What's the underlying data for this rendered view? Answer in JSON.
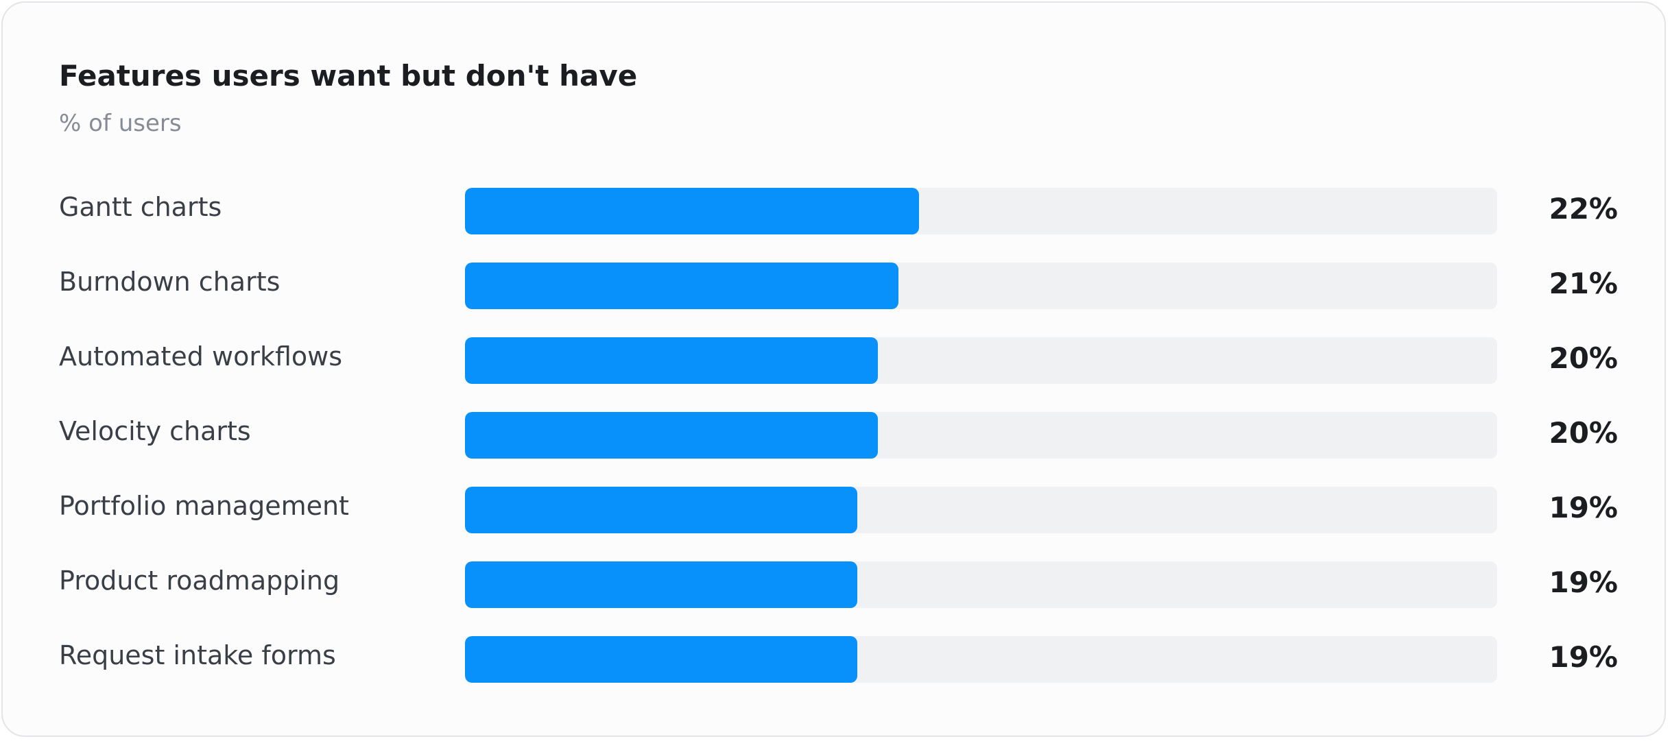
{
  "chart_data": {
    "type": "bar",
    "orientation": "horizontal",
    "title": "Features users want but don't have",
    "subtitle": "% of users",
    "categories": [
      "Gantt charts",
      "Burndown charts",
      "Automated workflows",
      "Velocity charts",
      "Portfolio management",
      "Product roadmapping",
      "Request intake forms"
    ],
    "values": [
      22,
      21,
      20,
      20,
      19,
      19,
      19
    ],
    "value_labels": [
      "22%",
      "21%",
      "20%",
      "20%",
      "19%",
      "19%",
      "19%"
    ],
    "xlim": [
      0,
      50
    ],
    "grid": false,
    "colors": {
      "bar": "#0891fb",
      "track": "#f0f1f3",
      "title": "#1b1d21",
      "subtitle": "#868b95",
      "label": "#3a3f47"
    }
  }
}
